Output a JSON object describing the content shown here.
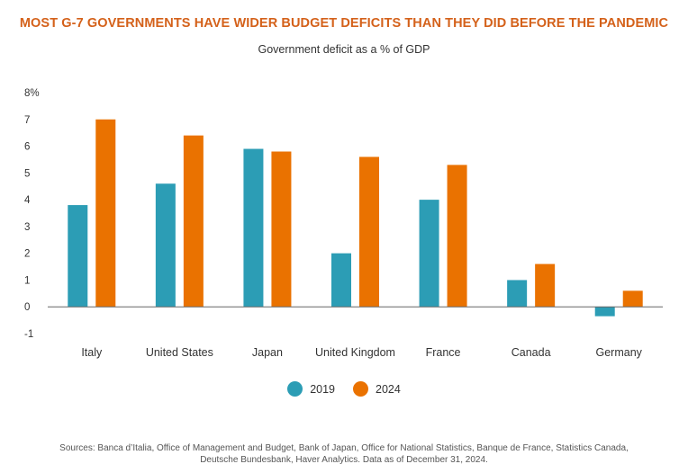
{
  "colors": {
    "series_2019": "#2c9db5",
    "series_2024": "#ea7200",
    "title": "#d4611a"
  },
  "chart_data": {
    "type": "bar",
    "title": "MOST G-7 GOVERNMENTS HAVE WIDER BUDGET DEFICITS THAN THEY DID BEFORE THE PANDEMIC",
    "subtitle": "Government deficit as a % of GDP",
    "xlabel": "",
    "ylabel": "",
    "ylim": [
      -1,
      8
    ],
    "yticks": [
      "8%",
      "7",
      "6",
      "5",
      "4",
      "3",
      "2",
      "1",
      "0",
      "-1"
    ],
    "ytick_values": [
      8,
      7,
      6,
      5,
      4,
      3,
      2,
      1,
      0,
      -1
    ],
    "categories": [
      "Italy",
      "United States",
      "Japan",
      "United Kingdom",
      "France",
      "Canada",
      "Germany"
    ],
    "series": [
      {
        "name": "2019",
        "values": [
          3.8,
          4.6,
          5.9,
          2.0,
          4.0,
          1.0,
          -0.35
        ]
      },
      {
        "name": "2024",
        "values": [
          7.0,
          6.4,
          5.8,
          5.6,
          5.3,
          1.6,
          0.6
        ]
      }
    ],
    "grid": false,
    "legend_position": "bottom-center"
  },
  "sources": {
    "line1": "Sources: Banca d’Italia, Office of Management and Budget, Bank of Japan, Office for National Statistics, Banque de France, Statistics Canada,",
    "line2": "Deutsche Bundesbank, Haver Analytics. Data as of December 31, 2024."
  }
}
